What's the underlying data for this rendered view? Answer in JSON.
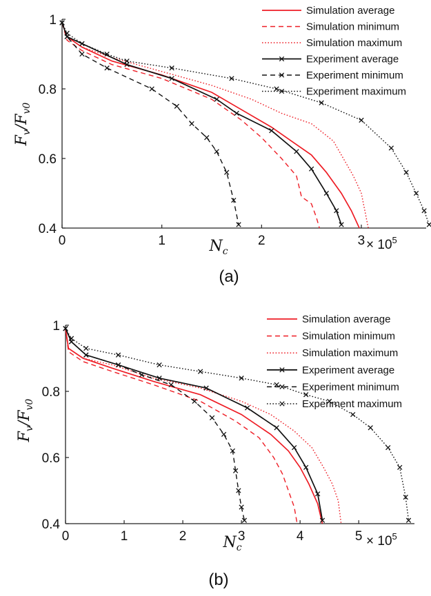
{
  "panel_a": {
    "caption": "(a)",
    "x_multiplier": {
      "base": "× 10",
      "exponent": "5"
    },
    "y_label": {
      "f1": "F",
      "s1": "v",
      "slash": "/",
      "f2": "F",
      "s2": "v0"
    },
    "x_label": {
      "n": "N",
      "s": "c"
    }
  },
  "panel_b": {
    "caption": "(b)",
    "x_multiplier": {
      "base": "× 10",
      "exponent": "5"
    },
    "y_label": {
      "f1": "F",
      "s1": "v",
      "slash": "/",
      "f2": "F",
      "s2": "v0"
    },
    "x_label": {
      "n": "N",
      "s": "c"
    }
  },
  "chart_data": [
    {
      "type": "line",
      "panel": "(a)",
      "xlabel": "N_c",
      "ylabel": "F_v/F_v0",
      "x_multiplier": "× 10^5",
      "xlim": [
        0,
        3.65
      ],
      "ylim": [
        0.4,
        1.0
      ],
      "xticks": [
        "0",
        "1",
        "2",
        "3"
      ],
      "yticks": [
        "0.4",
        "0.6",
        "0.8",
        "1"
      ],
      "legend_position": "top-right",
      "colors": {
        "simulation": "#ee1c24",
        "experiment": "#111111"
      },
      "series": [
        {
          "name": "Simulation average",
          "style": "solid",
          "color": "#ee1c24",
          "marker": "none",
          "x": [
            0,
            0.05,
            0.2,
            0.5,
            1.0,
            1.5,
            1.8,
            2.1,
            2.3,
            2.5,
            2.65,
            2.8,
            2.9,
            2.98
          ],
          "y": [
            0.99,
            0.95,
            0.92,
            0.88,
            0.84,
            0.79,
            0.74,
            0.69,
            0.65,
            0.61,
            0.56,
            0.5,
            0.45,
            0.4
          ]
        },
        {
          "name": "Simulation minimum",
          "style": "dashed",
          "color": "#ee1c24",
          "marker": "none",
          "x": [
            0,
            0.05,
            0.2,
            0.5,
            1.0,
            1.5,
            1.8,
            2.0,
            2.2,
            2.35,
            2.4,
            2.5,
            2.55,
            2.58
          ],
          "y": [
            0.99,
            0.94,
            0.91,
            0.87,
            0.83,
            0.77,
            0.71,
            0.66,
            0.6,
            0.55,
            0.49,
            0.47,
            0.43,
            0.4
          ]
        },
        {
          "name": "Simulation maximum",
          "style": "dotted",
          "color": "#ee1c24",
          "marker": "none",
          "x": [
            0,
            0.05,
            0.2,
            0.5,
            1.0,
            1.5,
            1.9,
            2.2,
            2.5,
            2.72,
            2.82,
            2.92,
            3.0,
            3.07
          ],
          "y": [
            0.99,
            0.95,
            0.92,
            0.89,
            0.85,
            0.81,
            0.77,
            0.73,
            0.7,
            0.65,
            0.6,
            0.55,
            0.5,
            0.4
          ]
        },
        {
          "name": "Experiment average",
          "style": "solid",
          "color": "#111111",
          "marker": "x",
          "x": [
            0,
            0.05,
            0.2,
            0.65,
            1.1,
            1.55,
            1.75,
            2.1,
            2.35,
            2.5,
            2.65,
            2.75,
            2.8
          ],
          "y": [
            0.99,
            0.95,
            0.93,
            0.87,
            0.83,
            0.77,
            0.73,
            0.68,
            0.62,
            0.57,
            0.5,
            0.45,
            0.41
          ]
        },
        {
          "name": "Experiment minimum",
          "style": "dashed",
          "color": "#111111",
          "marker": "x",
          "x": [
            0,
            0.05,
            0.2,
            0.45,
            0.9,
            1.15,
            1.3,
            1.45,
            1.55,
            1.65,
            1.72,
            1.77
          ],
          "y": [
            0.99,
            0.95,
            0.9,
            0.86,
            0.8,
            0.75,
            0.7,
            0.66,
            0.62,
            0.56,
            0.48,
            0.41
          ]
        },
        {
          "name": "Experiment maximum",
          "style": "dotted",
          "color": "#111111",
          "marker": "x",
          "x": [
            0,
            0.05,
            0.2,
            0.45,
            0.65,
            1.1,
            1.7,
            2.15,
            2.6,
            3.0,
            3.3,
            3.45,
            3.55,
            3.63,
            3.68
          ],
          "y": [
            0.99,
            0.96,
            0.93,
            0.9,
            0.88,
            0.86,
            0.83,
            0.8,
            0.76,
            0.71,
            0.63,
            0.56,
            0.5,
            0.45,
            0.41
          ]
        }
      ]
    },
    {
      "type": "line",
      "panel": "(b)",
      "xlabel": "N_c",
      "ylabel": "F_v/F_v0",
      "x_multiplier": "× 10^5",
      "xlim": [
        0,
        5.95
      ],
      "ylim": [
        0.4,
        1.0
      ],
      "xticks": [
        "0",
        "1",
        "2",
        "3",
        "4",
        "5"
      ],
      "yticks": [
        "0.4",
        "0.6",
        "0.8",
        "1"
      ],
      "legend_position": "top-right",
      "colors": {
        "simulation": "#ee1c24",
        "experiment": "#111111"
      },
      "series": [
        {
          "name": "Simulation average",
          "style": "solid",
          "color": "#ee1c24",
          "marker": "none",
          "x": [
            0,
            0.05,
            0.3,
            0.8,
            1.5,
            2.3,
            3.0,
            3.5,
            3.8,
            4.0,
            4.15,
            4.3,
            4.38
          ],
          "y": [
            0.99,
            0.93,
            0.9,
            0.87,
            0.83,
            0.79,
            0.73,
            0.67,
            0.62,
            0.57,
            0.52,
            0.46,
            0.4
          ]
        },
        {
          "name": "Simulation minimum",
          "style": "dashed",
          "color": "#ee1c24",
          "marker": "none",
          "x": [
            0,
            0.05,
            0.3,
            0.8,
            1.5,
            2.3,
            2.9,
            3.3,
            3.55,
            3.7,
            3.8,
            3.9,
            3.95
          ],
          "y": [
            0.99,
            0.92,
            0.89,
            0.86,
            0.82,
            0.77,
            0.71,
            0.66,
            0.6,
            0.55,
            0.5,
            0.45,
            0.4
          ]
        },
        {
          "name": "Simulation maximum",
          "style": "dotted",
          "color": "#ee1c24",
          "marker": "none",
          "x": [
            0,
            0.05,
            0.3,
            0.8,
            1.5,
            2.3,
            3.0,
            3.5,
            3.9,
            4.2,
            4.4,
            4.55,
            4.65,
            4.7
          ],
          "y": [
            0.99,
            0.93,
            0.9,
            0.88,
            0.84,
            0.81,
            0.77,
            0.73,
            0.68,
            0.63,
            0.57,
            0.52,
            0.47,
            0.4
          ]
        },
        {
          "name": "Experiment average",
          "style": "solid",
          "color": "#111111",
          "marker": "x",
          "x": [
            0,
            0.1,
            0.35,
            0.9,
            1.6,
            2.4,
            3.1,
            3.6,
            3.9,
            4.1,
            4.3,
            4.38
          ],
          "y": [
            0.99,
            0.95,
            0.91,
            0.88,
            0.84,
            0.81,
            0.75,
            0.69,
            0.63,
            0.57,
            0.49,
            0.41
          ]
        },
        {
          "name": "Experiment minimum",
          "style": "dashed",
          "color": "#111111",
          "marker": "x",
          "x": [
            0,
            0.1,
            0.35,
            0.9,
            1.3,
            1.8,
            2.2,
            2.5,
            2.7,
            2.85,
            2.9,
            2.95,
            3.0,
            3.05
          ],
          "y": [
            0.99,
            0.95,
            0.91,
            0.88,
            0.85,
            0.82,
            0.77,
            0.72,
            0.67,
            0.62,
            0.56,
            0.5,
            0.45,
            0.41
          ]
        },
        {
          "name": "Experiment maximum",
          "style": "dotted",
          "color": "#111111",
          "marker": "x",
          "x": [
            0,
            0.1,
            0.35,
            0.9,
            1.6,
            2.3,
            3.0,
            3.6,
            4.1,
            4.5,
            4.9,
            5.2,
            5.5,
            5.7,
            5.8,
            5.85
          ],
          "y": [
            0.99,
            0.96,
            0.93,
            0.91,
            0.88,
            0.86,
            0.84,
            0.82,
            0.79,
            0.77,
            0.73,
            0.69,
            0.63,
            0.57,
            0.48,
            0.41
          ]
        }
      ]
    }
  ]
}
